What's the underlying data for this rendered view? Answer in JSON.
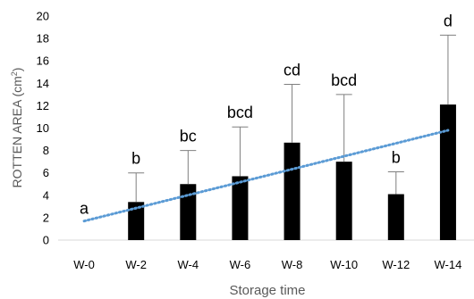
{
  "chart_data": {
    "type": "bar",
    "title": "",
    "xlabel": "Storage time",
    "ylabel_main": "ROTTEN AREA (cm",
    "ylabel_sup": "2",
    "ylabel_close": ")",
    "ylim": [
      0,
      20
    ],
    "y_ticks": [
      "0",
      "2",
      "4",
      "6",
      "8",
      "10",
      "12",
      "14",
      "16",
      "18",
      "20"
    ],
    "categories": [
      "W-0",
      "W-2",
      "W-4",
      "W-6",
      "W-8",
      "W-10",
      "W-12",
      "W-14"
    ],
    "values": [
      0,
      3.4,
      5.0,
      5.7,
      8.7,
      7.0,
      4.1,
      12.1
    ],
    "error_upper": [
      0,
      6.0,
      8.0,
      10.1,
      13.9,
      13.0,
      6.1,
      18.3
    ],
    "letters": [
      "a",
      "b",
      "bc",
      "bcd",
      "cd",
      "bcd",
      "b",
      "d"
    ],
    "trendline": {
      "style": "dotted",
      "start": 1.7,
      "end": 9.8
    },
    "colors": {
      "bar": "#000000",
      "trend": "#5B9BD5",
      "axis_text": "#595959"
    },
    "grid": false,
    "legend": "none"
  }
}
